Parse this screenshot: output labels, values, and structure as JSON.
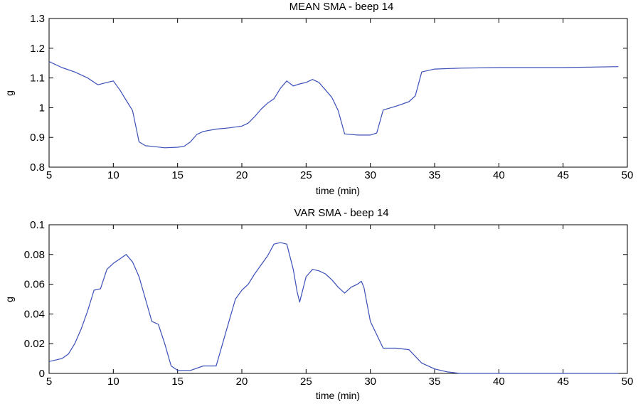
{
  "chart_data": [
    {
      "type": "line",
      "title": "MEAN SMA - beep 14",
      "xlabel": "time (min)",
      "ylabel": "g",
      "xlim": [
        5,
        50
      ],
      "ylim": [
        0.8,
        1.3
      ],
      "xticks": [
        5,
        10,
        15,
        20,
        25,
        30,
        35,
        40,
        45,
        50
      ],
      "yticks": [
        0.8,
        0.9,
        1,
        1.1,
        1.2,
        1.3
      ],
      "ytick_labels": [
        "0.8",
        "0.9",
        "1",
        "1.1",
        "1.2",
        "1.3"
      ],
      "grid": false,
      "line_color": "#3b4fb8",
      "series": [
        {
          "x": [
            5,
            6,
            7,
            8,
            8.8,
            9.5,
            10,
            10.5,
            11,
            11.5,
            12,
            12.5,
            13,
            14,
            15,
            15.5,
            16,
            16.5,
            17,
            18,
            19,
            20,
            20.5,
            21,
            21.5,
            22,
            22.5,
            23,
            23.5,
            24,
            24.5,
            25,
            25.5,
            26,
            26.5,
            27,
            27.5,
            28,
            29,
            30,
            30.5,
            31,
            32,
            33,
            33.5,
            34,
            35,
            37,
            40,
            45,
            49.3
          ],
          "y": [
            1.155,
            1.135,
            1.12,
            1.1,
            1.077,
            1.085,
            1.09,
            1.06,
            1.025,
            0.99,
            0.885,
            0.872,
            0.87,
            0.865,
            0.867,
            0.87,
            0.885,
            0.91,
            0.92,
            0.928,
            0.932,
            0.938,
            0.948,
            0.97,
            0.995,
            1.015,
            1.03,
            1.065,
            1.09,
            1.073,
            1.08,
            1.085,
            1.095,
            1.085,
            1.06,
            1.035,
            0.99,
            0.912,
            0.908,
            0.908,
            0.915,
            0.992,
            1.005,
            1.02,
            1.04,
            1.12,
            1.13,
            1.133,
            1.135,
            1.135,
            1.138
          ]
        }
      ]
    },
    {
      "type": "line",
      "title": "VAR SMA - beep 14",
      "xlabel": "time (min)",
      "ylabel": "g",
      "xlim": [
        5,
        50
      ],
      "ylim": [
        0,
        0.1
      ],
      "xticks": [
        5,
        10,
        15,
        20,
        25,
        30,
        35,
        40,
        45,
        50
      ],
      "yticks": [
        0,
        0.02,
        0.04,
        0.06,
        0.08,
        0.1
      ],
      "ytick_labels": [
        "0",
        "0.02",
        "0.04",
        "0.06",
        "0.08",
        "0.1"
      ],
      "grid": false,
      "line_color": "#3b4fb8",
      "series": [
        {
          "x": [
            5,
            6,
            6.5,
            7,
            7.5,
            8,
            8.5,
            9,
            9.5,
            10,
            10.5,
            11,
            11.5,
            12,
            12.5,
            13,
            13.5,
            14,
            14.5,
            15,
            15.5,
            16,
            17,
            18,
            19,
            19.5,
            20,
            20.5,
            21,
            21.5,
            22,
            22.5,
            23,
            23.5,
            24,
            24.3,
            24.5,
            25,
            25.5,
            26,
            26.5,
            27,
            27.5,
            28,
            28.5,
            29,
            29.3,
            29.5,
            30,
            31,
            32,
            33,
            34,
            35,
            36,
            37,
            40,
            45,
            49.3
          ],
          "y": [
            0.008,
            0.01,
            0.013,
            0.02,
            0.03,
            0.042,
            0.056,
            0.057,
            0.07,
            0.074,
            0.077,
            0.08,
            0.075,
            0.065,
            0.05,
            0.035,
            0.033,
            0.02,
            0.005,
            0.002,
            0.002,
            0.002,
            0.005,
            0.005,
            0.035,
            0.05,
            0.056,
            0.06,
            0.067,
            0.073,
            0.079,
            0.087,
            0.088,
            0.087,
            0.07,
            0.055,
            0.048,
            0.065,
            0.07,
            0.069,
            0.067,
            0.063,
            0.058,
            0.054,
            0.058,
            0.06,
            0.062,
            0.058,
            0.035,
            0.017,
            0.017,
            0.016,
            0.007,
            0.003,
            0.001,
            0,
            0,
            0,
            0
          ]
        }
      ]
    }
  ]
}
